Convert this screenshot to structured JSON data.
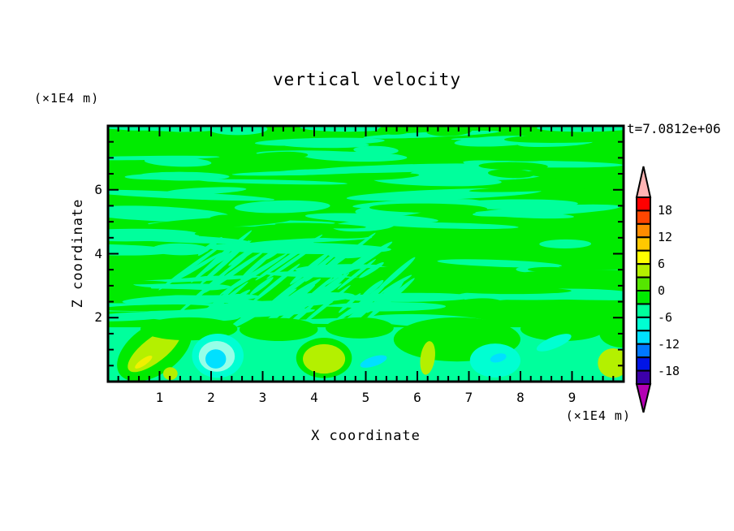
{
  "title": "vertical velocity",
  "timestamp": "t=7.0812e+06",
  "axes": {
    "x": {
      "label": "X coordinate",
      "unit_label": "(×1E4 m)",
      "range": [
        0,
        10
      ],
      "major_ticks": [
        1,
        2,
        3,
        4,
        5,
        6,
        7,
        8,
        9
      ],
      "minor_step": 0.2
    },
    "z": {
      "label": "Z coordinate",
      "unit_label": "(×1E4 m)",
      "range": [
        0,
        8
      ],
      "major_ticks": [
        2,
        4,
        6
      ],
      "minor_step": 0.5
    }
  },
  "colorbar": {
    "tick_labels": [
      18,
      12,
      6,
      0,
      -6,
      -12,
      -18
    ],
    "level_min": -21,
    "level_max": 21,
    "level_step": 3,
    "segment_colors_top_to_bottom": [
      "#FF0000",
      "#FF4600",
      "#FF8C00",
      "#FFC800",
      "#FFFF00",
      "#B4F000",
      "#55E600",
      "#00EB00",
      "#00FF9C",
      "#00FFD2",
      "#00E0FF",
      "#0078FF",
      "#0014E6",
      "#3C00AA"
    ],
    "above_range_color": "#FFB4B4",
    "below_range_color": "#B400B4",
    "outline_color": "#000000"
  },
  "chart_data": {
    "type": "heatmap",
    "title": "vertical velocity",
    "xlabel": "X coordinate",
    "ylabel": "Z coordinate",
    "x_units": "×1E4 m",
    "z_units": "×1E4 m",
    "time_label": "t=7.0812e+06",
    "x_range": [
      0,
      10
    ],
    "z_range": [
      0,
      8
    ],
    "contour_interval": 3,
    "level_range": [
      -21,
      21
    ],
    "field_description": "Filled contour field near zero velocity: horizontal wavy streaks alternating between the 0..3 green and -3..0 spring-green bands over most of the domain, a packet of fine diagonal ripples around x=1.4-5.6 / z=1.8-4.2, and stronger cells in the lowest band (z<1.7) with lime/yellow updraft blobs and turquoise/cyan downdraft patches.",
    "field_colors": {
      "green": "#00EB00",
      "spring": "#00FF9C",
      "lime": "#B4F000",
      "yellow": "#F0F000",
      "turquoise": "#00FFD2",
      "pale_cyan": "#96FFE8",
      "cyan": "#00E0FF"
    },
    "pattern": {
      "streaks": [
        {
          "color": "spring",
          "count": 78,
          "x": [
            0,
            10
          ],
          "z": [
            1.85,
            8.0
          ],
          "len": [
            0.35,
            1.9
          ],
          "thick": [
            0.06,
            0.2
          ],
          "seed": 11
        },
        {
          "color": "green",
          "count": 42,
          "x": [
            0,
            10
          ],
          "z": [
            1.9,
            7.9
          ],
          "len": [
            0.3,
            1.5
          ],
          "thick": [
            0.06,
            0.18
          ],
          "seed": 23
        }
      ],
      "ripples": {
        "color": "spring",
        "count": 58,
        "x": [
          1.4,
          5.65
        ],
        "z": [
          1.75,
          4.25
        ],
        "len": [
          0.25,
          0.8
        ],
        "thick": [
          0.05,
          0.09
        ],
        "angle": -36,
        "seed": 5
      },
      "bottom_band": {
        "color": "spring",
        "z_top": 1.7
      }
    },
    "features": [
      {
        "color": "green",
        "cx": 0.9,
        "cz": 0.99,
        "rx": 0.82,
        "rz": 0.76,
        "rot": -35
      },
      {
        "color": "lime",
        "cx": 0.9,
        "cz": 0.99,
        "rx": 0.63,
        "rz": 0.38,
        "rot": -38
      },
      {
        "color": "yellow",
        "cx": 0.69,
        "cz": 0.61,
        "rx": 0.2,
        "rz": 0.1,
        "rot": -35
      },
      {
        "color": "lime",
        "cx": 1.21,
        "cz": 0.25,
        "rx": 0.14,
        "rz": 0.2,
        "rot": 0
      },
      {
        "color": "green",
        "cx": 1.57,
        "cz": 1.65,
        "rx": 0.94,
        "rz": 0.36,
        "rot": 0
      },
      {
        "color": "green",
        "cx": 3.31,
        "cz": 1.63,
        "rx": 0.76,
        "rz": 0.36,
        "rot": 0
      },
      {
        "color": "green",
        "cx": 4.88,
        "cz": 1.68,
        "rx": 0.66,
        "rz": 0.33,
        "rot": 0
      },
      {
        "color": "green",
        "cx": 6.77,
        "cz": 1.32,
        "rx": 1.23,
        "rz": 0.69,
        "rot": 0
      },
      {
        "color": "green",
        "cx": 8.82,
        "cz": 1.65,
        "rx": 0.82,
        "rz": 0.38,
        "rot": 0
      },
      {
        "color": "green",
        "cx": 10.0,
        "cz": 1.52,
        "rx": 0.47,
        "rz": 0.46,
        "rot": 0
      },
      {
        "color": "turquoise",
        "cx": 2.13,
        "cz": 0.81,
        "rx": 0.5,
        "rz": 0.69,
        "rot": 0
      },
      {
        "color": "pale_cyan",
        "cx": 2.11,
        "cz": 0.79,
        "rx": 0.35,
        "rz": 0.48,
        "rot": 0
      },
      {
        "color": "cyan",
        "cx": 2.09,
        "cz": 0.71,
        "rx": 0.2,
        "rz": 0.3,
        "rot": 0
      },
      {
        "color": "green",
        "cx": 4.19,
        "cz": 0.74,
        "rx": 0.54,
        "rz": 0.63,
        "rot": 0
      },
      {
        "color": "lime",
        "cx": 4.19,
        "cz": 0.71,
        "rx": 0.41,
        "rz": 0.46,
        "rot": 0
      },
      {
        "color": "cyan",
        "cx": 5.15,
        "cz": 0.63,
        "rx": 0.27,
        "rz": 0.15,
        "rot": -18
      },
      {
        "color": "lime",
        "cx": 6.2,
        "cz": 0.74,
        "rx": 0.14,
        "rz": 0.53,
        "rot": 8
      },
      {
        "color": "turquoise",
        "cx": 7.51,
        "cz": 0.66,
        "rx": 0.49,
        "rz": 0.53,
        "rot": 0
      },
      {
        "color": "cyan",
        "cx": 7.57,
        "cz": 0.74,
        "rx": 0.16,
        "rz": 0.13,
        "rot": -15
      },
      {
        "color": "turquoise",
        "cx": 8.65,
        "cz": 1.22,
        "rx": 0.36,
        "rz": 0.18,
        "rot": -22
      },
      {
        "color": "lime",
        "cx": 9.8,
        "cz": 0.58,
        "rx": 0.3,
        "rz": 0.46,
        "rot": 0
      }
    ]
  }
}
